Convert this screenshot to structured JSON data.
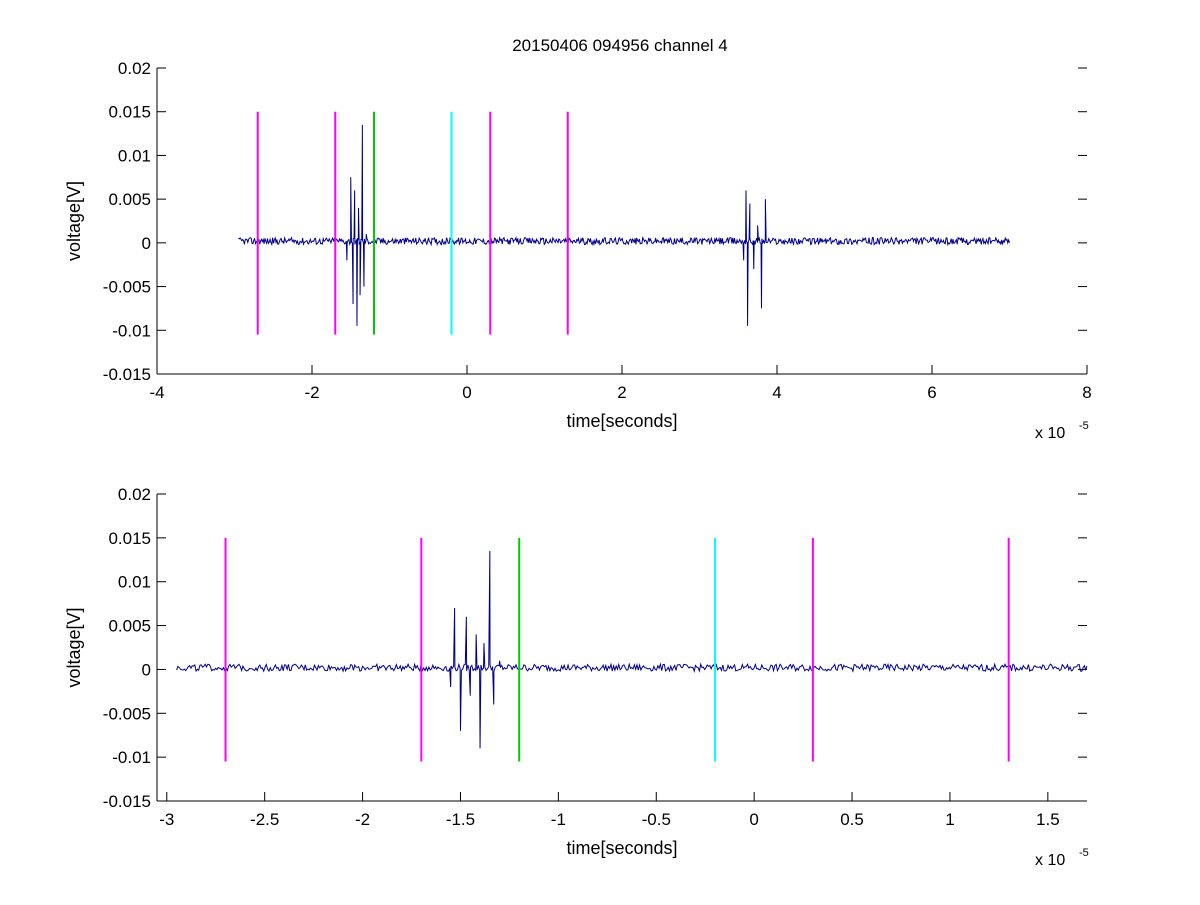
{
  "figure": {
    "title": "20150406 094956 channel 4"
  },
  "colors": {
    "signal": "#00008b",
    "magenta": "#ff00ff",
    "green": "#00cc00",
    "cyan": "#00ffff",
    "axis": "#000000"
  },
  "chart_data": [
    {
      "type": "line",
      "title": "20150406 094956 channel 4",
      "xlabel": "time[seconds]",
      "ylabel": "voltage[V]",
      "x_multiplier": "x 10",
      "x_multiplier_exponent": "-5",
      "xlim": [
        -4e-05,
        8e-05
      ],
      "ylim": [
        -0.015,
        0.02
      ],
      "x_ticks": [
        -4,
        -2,
        0,
        2,
        4,
        6,
        8
      ],
      "x_tick_labels": [
        "-4",
        "-2",
        "0",
        "2",
        "4",
        "6",
        "8"
      ],
      "y_ticks": [
        -0.015,
        -0.01,
        -0.005,
        0,
        0.005,
        0.01,
        0.015,
        0.02
      ],
      "y_tick_labels": [
        "-0.015",
        "-0.01",
        "-0.005",
        "0",
        "0.005",
        "0.01",
        "0.015",
        "0.02"
      ],
      "series": [
        {
          "color": "#00008b",
          "x_range": [
            -2.95e-05,
            7e-05
          ],
          "baseline": 0.0002,
          "noise_amplitude": 0.0004,
          "bursts": [
            {
              "x": [
                -1.55e-05,
                -1.5e-05,
                -1.47e-05,
                -1.45e-05,
                -1.42e-05,
                -1.4e-05,
                -1.38e-05,
                -1.35e-05,
                -1.33e-05,
                -1.3e-05
              ],
              "y": [
                -0.002,
                0.0075,
                -0.007,
                0.006,
                -0.0095,
                0.004,
                -0.006,
                0.0135,
                -0.005,
                0.001
              ]
            },
            {
              "x": [
                3.57e-05,
                3.6e-05,
                3.62e-05,
                3.65e-05,
                3.7e-05,
                3.75e-05,
                3.8e-05,
                3.85e-05
              ],
              "y": [
                -0.002,
                0.006,
                -0.0095,
                0.0045,
                -0.003,
                0.002,
                -0.0075,
                0.005
              ]
            }
          ]
        }
      ],
      "markers": [
        {
          "x": -2.7e-05,
          "color": "#ff00ff",
          "y": [
            -0.0105,
            0.015
          ]
        },
        {
          "x": -1.7e-05,
          "color": "#ff00ff",
          "y": [
            -0.0105,
            0.015
          ]
        },
        {
          "x": -1.2e-05,
          "color": "#00cc00",
          "y": [
            -0.0105,
            0.015
          ]
        },
        {
          "x": -2e-06,
          "color": "#00ffff",
          "y": [
            -0.0105,
            0.015
          ]
        },
        {
          "x": 3e-06,
          "color": "#ff00ff",
          "y": [
            -0.0105,
            0.015
          ]
        },
        {
          "x": 1.3e-05,
          "color": "#ff00ff",
          "y": [
            -0.0105,
            0.015
          ]
        }
      ]
    },
    {
      "type": "line",
      "title": "",
      "xlabel": "time[seconds]",
      "ylabel": "voltage[V]",
      "x_multiplier": "x 10",
      "x_multiplier_exponent": "-5",
      "xlim": [
        -3.05e-05,
        1.7e-05
      ],
      "ylim": [
        -0.015,
        0.02
      ],
      "x_ticks": [
        -3,
        -2.5,
        -2,
        -1.5,
        -1,
        -0.5,
        0,
        0.5,
        1,
        1.5
      ],
      "x_tick_labels": [
        "-3",
        "-2.5",
        "-2",
        "-1.5",
        "-1",
        "-0.5",
        "0",
        "0.5",
        "1",
        "1.5"
      ],
      "y_ticks": [
        -0.015,
        -0.01,
        -0.005,
        0,
        0.005,
        0.01,
        0.015,
        0.02
      ],
      "y_tick_labels": [
        "-0.015",
        "-0.01",
        "-0.005",
        "0",
        "0.005",
        "0.01",
        "0.015",
        "0.02"
      ],
      "series": [
        {
          "color": "#00008b",
          "x_range": [
            -2.95e-05,
            1.7e-05
          ],
          "baseline": 0.0002,
          "noise_amplitude": 0.0004,
          "bursts": [
            {
              "x": [
                -1.55e-05,
                -1.53e-05,
                -1.5e-05,
                -1.47e-05,
                -1.45e-05,
                -1.42e-05,
                -1.4e-05,
                -1.38e-05,
                -1.35e-05,
                -1.33e-05,
                -1.3e-05
              ],
              "y": [
                -0.002,
                0.007,
                -0.007,
                0.006,
                -0.003,
                0.004,
                -0.009,
                0.003,
                0.0135,
                -0.004,
                0.001
              ]
            }
          ]
        }
      ],
      "markers": [
        {
          "x": -2.7e-05,
          "color": "#ff00ff",
          "y": [
            -0.0105,
            0.015
          ]
        },
        {
          "x": -1.7e-05,
          "color": "#ff00ff",
          "y": [
            -0.0105,
            0.015
          ]
        },
        {
          "x": -1.2e-05,
          "color": "#00cc00",
          "y": [
            -0.0105,
            0.015
          ]
        },
        {
          "x": -2e-06,
          "color": "#00ffff",
          "y": [
            -0.0105,
            0.015
          ]
        },
        {
          "x": 3e-06,
          "color": "#ff00ff",
          "y": [
            -0.0105,
            0.015
          ]
        },
        {
          "x": 1.3e-05,
          "color": "#ff00ff",
          "y": [
            -0.0105,
            0.015
          ]
        }
      ]
    }
  ]
}
